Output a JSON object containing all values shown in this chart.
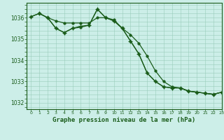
{
  "background_color": "#cceee8",
  "grid_color": "#99ccbb",
  "line_color": "#1a5c1a",
  "title": "Graphe pression niveau de la mer (hPa)",
  "title_color": "#1a5c1a",
  "xlim": [
    -0.5,
    23
  ],
  "ylim": [
    1031.7,
    1036.7
  ],
  "yticks": [
    1032,
    1033,
    1034,
    1035,
    1036
  ],
  "xticks": [
    0,
    1,
    2,
    3,
    4,
    5,
    6,
    7,
    8,
    9,
    10,
    11,
    12,
    13,
    14,
    15,
    16,
    17,
    18,
    19,
    20,
    21,
    22,
    23
  ],
  "series1_x": [
    0,
    1,
    2,
    3,
    4,
    5,
    6,
    7,
    8,
    9,
    10,
    11,
    12,
    13,
    14,
    15,
    16,
    17,
    18,
    19,
    20,
    21,
    22,
    23
  ],
  "series1_y": [
    1036.05,
    1036.2,
    1036.0,
    1035.85,
    1035.75,
    1035.75,
    1035.75,
    1035.75,
    1036.0,
    1036.0,
    1035.9,
    1035.5,
    1035.2,
    1034.8,
    1034.2,
    1033.5,
    1033.0,
    1032.75,
    1032.7,
    1032.55,
    1032.5,
    1032.45,
    1032.4,
    1032.5
  ],
  "series2_x": [
    0,
    1,
    2,
    3,
    4,
    5,
    6,
    7,
    8,
    9,
    10,
    11,
    12,
    13,
    14,
    15,
    16,
    17,
    18,
    19,
    20,
    21,
    22,
    23
  ],
  "series2_y": [
    1036.05,
    1036.2,
    1036.0,
    1035.5,
    1035.3,
    1035.5,
    1035.6,
    1035.65,
    1036.4,
    1036.0,
    1035.85,
    1035.5,
    1034.9,
    1034.3,
    1033.4,
    1033.0,
    1032.75,
    1032.7,
    1032.7,
    1032.55,
    1032.5,
    1032.45,
    1032.4,
    1032.5
  ],
  "series3_x": [
    1,
    2,
    3,
    4,
    5,
    6,
    7,
    8,
    9,
    10,
    11,
    12,
    13,
    14,
    15,
    16,
    17,
    18,
    19,
    20,
    21,
    22,
    23
  ],
  "series3_y": [
    1036.2,
    1036.0,
    1035.5,
    1035.3,
    1035.5,
    1035.55,
    1035.65,
    1036.4,
    1036.0,
    1035.85,
    1035.5,
    1034.9,
    1034.3,
    1033.4,
    1033.0,
    1032.75,
    1032.7,
    1032.7,
    1032.55,
    1032.5,
    1032.45,
    1032.4,
    1032.5
  ]
}
